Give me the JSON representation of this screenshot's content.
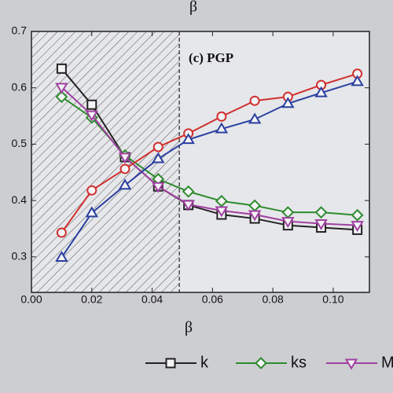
{
  "chart_data": {
    "type": "line",
    "top_label": "β",
    "annotation": "(c) PGP",
    "x_label": "β",
    "x": [
      0.01,
      0.02,
      0.031,
      0.042,
      0.052,
      0.063,
      0.074,
      0.085,
      0.096,
      0.108
    ],
    "series": [
      {
        "name": "k",
        "color": "#222222",
        "marker": "square",
        "values": [
          0.634,
          0.57,
          0.477,
          0.425,
          0.392,
          0.375,
          0.368,
          0.356,
          0.352,
          0.348
        ]
      },
      {
        "name": "ks",
        "color": "#2e8b2e",
        "marker": "diamond",
        "values": [
          0.584,
          0.547,
          0.48,
          0.438,
          0.416,
          0.399,
          0.391,
          0.379,
          0.379,
          0.374
        ]
      },
      {
        "name": "M",
        "color": "#a040a0",
        "marker": "triangle-down",
        "values": [
          0.601,
          0.552,
          0.477,
          0.425,
          0.393,
          0.382,
          0.375,
          0.363,
          0.359,
          0.356
        ]
      },
      {
        "color": "#d03030",
        "marker": "circle",
        "values": [
          0.343,
          0.418,
          0.456,
          0.495,
          0.519,
          0.549,
          0.577,
          0.584,
          0.605,
          0.625
        ]
      },
      {
        "color": "#2a3fa0",
        "marker": "triangle-up",
        "values": [
          0.299,
          0.378,
          0.427,
          0.474,
          0.508,
          0.527,
          0.544,
          0.572,
          0.591,
          0.611
        ]
      }
    ],
    "xlim": [
      0,
      0.112
    ],
    "ylim": [
      0.237,
      0.7
    ],
    "xticks": [
      {
        "value": 0,
        "label": "0.00"
      },
      {
        "value": 0.02,
        "label": "0.02"
      },
      {
        "value": 0.04,
        "label": "0.04"
      },
      {
        "value": 0.06,
        "label": "0.06"
      },
      {
        "value": 0.08,
        "label": "0.08"
      },
      {
        "value": 0.1,
        "label": "0.10"
      }
    ],
    "yticks": [
      0.3,
      0.4,
      0.5,
      0.6,
      0.7
    ],
    "shaded_xlim": [
      0,
      0.049
    ]
  }
}
